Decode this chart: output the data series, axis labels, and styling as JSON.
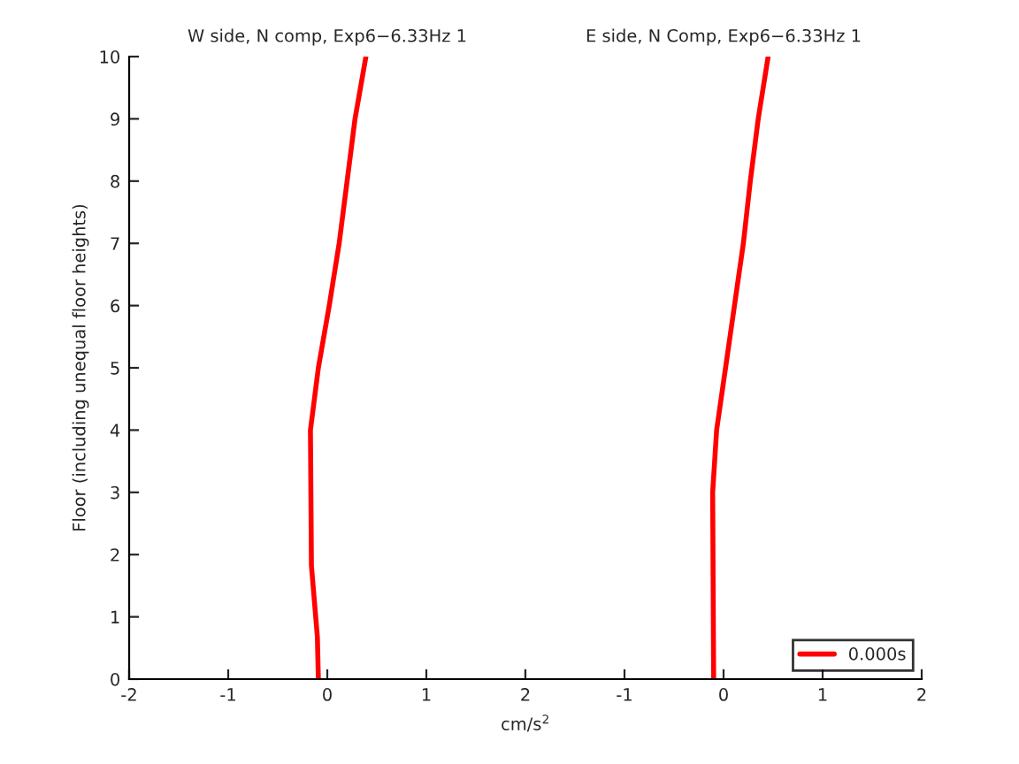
{
  "chart_data": [
    {
      "type": "line",
      "title": "W side, N comp, Exp6−6.33Hz 1",
      "ylabel": "Floor (including unequal floor heights)",
      "xlim": [
        -2,
        2
      ],
      "xticks": [
        -2,
        -1,
        0,
        1,
        2
      ],
      "ylim": [
        0,
        10
      ],
      "yticks": [
        0,
        1,
        2,
        3,
        4,
        5,
        6,
        7,
        8,
        9,
        10
      ],
      "grid": false,
      "marker": "none",
      "line_style": "solid",
      "series": [
        {
          "color": "#ff0000",
          "x": [
            -0.09,
            -0.1,
            -0.16,
            -0.17,
            -0.09,
            0.02,
            0.12,
            0.2,
            0.28,
            0.39
          ],
          "values": [
            0,
            0.68,
            1.82,
            4,
            5,
            6,
            7,
            8,
            9,
            10
          ]
        }
      ]
    },
    {
      "type": "line",
      "title": "E side, N Comp, Exp6−6.33Hz 1",
      "xlabel": "cm/s$^{2}$",
      "xlim": [
        -2,
        2
      ],
      "xticks": [
        {
          "value": -2,
          "label": null
        },
        -1,
        0,
        1,
        2
      ],
      "ylim": [
        0,
        10
      ],
      "tick_labels": "x",
      "grid": false,
      "legend": "bottom right",
      "marker": "none",
      "line_style": "solid",
      "series": [
        {
          "name": "0.000s",
          "color": "#ff0000",
          "x": [
            -0.1,
            -0.11,
            -0.07,
            0.02,
            0.11,
            0.2,
            0.27,
            0.35,
            0.45
          ],
          "values": [
            0,
            3,
            4,
            5,
            6,
            7,
            8,
            9,
            10
          ]
        }
      ]
    }
  ]
}
